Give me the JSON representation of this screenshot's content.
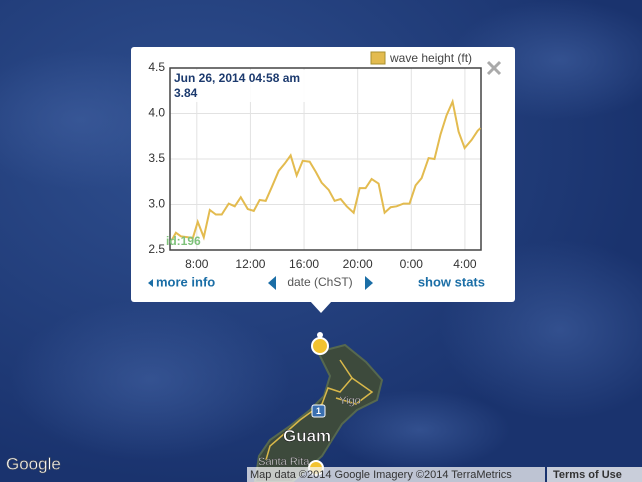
{
  "map": {
    "labels": {
      "guam": "Guam",
      "yigo": "Yigo",
      "santa_rita": "Santa Rita",
      "route": "1"
    },
    "logo": "Google",
    "attribution": "Map data ©2014 Google Imagery ©2014 TerraMetrics",
    "terms": "Terms of Use"
  },
  "popup": {
    "tooltip_date": "Jun 26, 2014 04:58 am",
    "tooltip_value": 3.84,
    "station_id": "id:196",
    "more_info": "more info",
    "show_stats": "show stats"
  },
  "chart_data": {
    "type": "line",
    "x_label": "date (ChST)",
    "x": [
      6.14,
      6.44,
      6.81,
      7.33,
      7.7,
      8.07,
      8.52,
      8.97,
      9.42,
      9.86,
      10.38,
      10.83,
      11.28,
      11.8,
      12.25,
      12.69,
      13.14,
      13.59,
      14.11,
      14.56,
      15.0,
      15.45,
      15.9,
      16.42,
      16.87,
      17.31,
      17.84,
      18.28,
      18.73,
      19.18,
      19.7,
      20.15,
      20.59,
      21.04,
      21.56,
      22.01,
      22.46,
      22.9,
      23.42,
      23.87,
      24.32,
      24.77,
      25.29,
      25.73,
      26.18,
      26.63,
      27.08,
      27.53,
      27.98,
      28.5,
      28.95,
      29.16
    ],
    "series": [
      {
        "name": "wave height (ft)",
        "color": "#e3bb4f",
        "values": [
          2.61,
          2.69,
          2.65,
          2.64,
          2.63,
          2.81,
          2.64,
          2.94,
          2.89,
          2.89,
          3.01,
          2.98,
          3.08,
          2.95,
          2.93,
          3.05,
          3.04,
          3.19,
          3.37,
          3.45,
          3.54,
          3.32,
          3.48,
          3.47,
          3.36,
          3.24,
          3.16,
          3.04,
          3.06,
          2.98,
          2.91,
          3.18,
          3.18,
          3.28,
          3.23,
          2.91,
          2.97,
          2.98,
          3.01,
          3.01,
          3.21,
          3.29,
          3.51,
          3.5,
          3.77,
          3.98,
          4.13,
          3.8,
          3.62,
          3.71,
          3.81,
          3.84
        ]
      }
    ],
    "xlim": [
      6,
      29.2
    ],
    "xticks": [
      {
        "value": 8,
        "label": "8:00"
      },
      {
        "value": 12,
        "label": "12:00"
      },
      {
        "value": 16,
        "label": "16:00"
      },
      {
        "value": 20,
        "label": "20:00"
      },
      {
        "value": 24,
        "label": "0:00"
      },
      {
        "value": 28,
        "label": "4:00"
      }
    ],
    "ylim": [
      2.5,
      4.5
    ],
    "yticks": [
      2.5,
      {
        "value": 3,
        "label": "3.0"
      },
      3.5,
      {
        "value": 4,
        "label": "4.0"
      },
      4.5
    ],
    "grid": true
  }
}
